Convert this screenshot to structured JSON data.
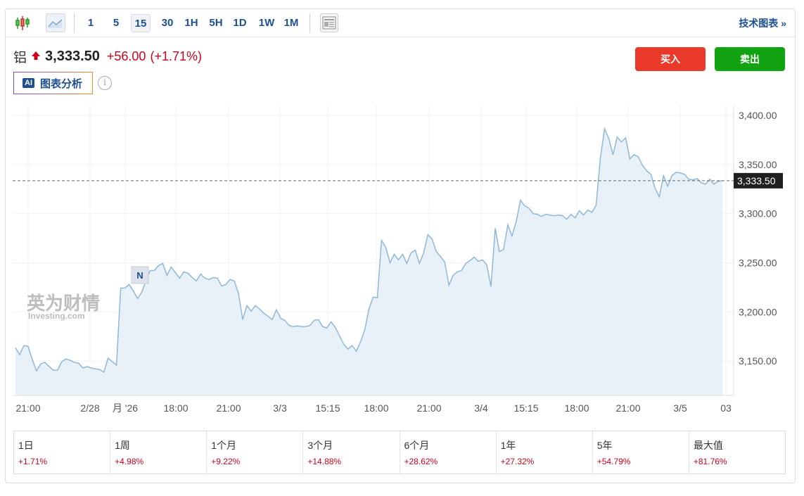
{
  "toolbar": {
    "intervals": [
      "1",
      "5",
      "15",
      "30",
      "1H",
      "5H",
      "1D",
      "1W",
      "1M"
    ],
    "active": "15",
    "tech_label": "技术图表 »"
  },
  "quote": {
    "name": "铝",
    "price": "3,333.50",
    "change": "+56.00",
    "change_pct": "(+1.71%)",
    "direction": "up"
  },
  "ai": {
    "badge": "AI",
    "label": "图表分析",
    "info": "i"
  },
  "actions": {
    "buy": "买入",
    "sell": "卖出"
  },
  "colors": {
    "up": "#d0021b",
    "buy": "#e8392b",
    "sell": "#12a312",
    "line": "#8fb8d8",
    "fill": "#e4eef7"
  },
  "watermark": {
    "cn": "英为财情",
    "en": "Investing.com"
  },
  "marker": "N",
  "chart_data": {
    "type": "area",
    "ylim": [
      3115,
      3410
    ],
    "yticks": [
      "3,150.00",
      "3,200.00",
      "3,250.00",
      "3,300.00",
      "3,350.00",
      "3,400.00"
    ],
    "ytick_values": [
      3150,
      3200,
      3250,
      3300,
      3350,
      3400
    ],
    "xticks": [
      "21:00",
      "2/28",
      "月 '26",
      "18:00",
      "21:00",
      "3/3",
      "15:15",
      "18:00",
      "21:00",
      "3/4",
      "15:15",
      "18:00",
      "21:00",
      "3/5",
      "03"
    ],
    "last_price": 3333.5,
    "last_label": "3,333.50",
    "grid": true,
    "values": [
      3163.6,
      3156.4,
      3165.7,
      3165,
      3151.4,
      3140,
      3147.1,
      3148.6,
      3144.3,
      3140.7,
      3140.7,
      3149.3,
      3152.1,
      3150.7,
      3148.6,
      3147.9,
      3142.9,
      3144.3,
      3142.9,
      3142.1,
      3141.4,
      3138.6,
      3152.9,
      3149.3,
      3145.7,
      3224.3,
      3224.3,
      3227.9,
      3221.4,
      3213.6,
      3220,
      3231.4,
      3242.1,
      3242.1,
      3247.1,
      3249.3,
      3237.1,
      3245.7,
      3240,
      3234.3,
      3240.7,
      3239.3,
      3235,
      3231.4,
      3238.6,
      3234.3,
      3232.9,
      3235,
      3234.3,
      3226.4,
      3227.9,
      3232.9,
      3231.4,
      3218.6,
      3192.1,
      3206.4,
      3200.7,
      3206.4,
      3202.9,
      3198.6,
      3195.7,
      3192.1,
      3202.1,
      3193.6,
      3191.4,
      3186.4,
      3185,
      3185.7,
      3185,
      3185,
      3186.4,
      3191.4,
      3192.1,
      3185,
      3183.6,
      3190,
      3184.3,
      3175.7,
      3167.1,
      3162.1,
      3165.7,
      3160,
      3169.3,
      3181.4,
      3202.9,
      3215,
      3214.3,
      3272.9,
      3265.7,
      3250,
      3258.6,
      3252.9,
      3258.6,
      3249.3,
      3260,
      3262.9,
      3249.3,
      3260,
      3278.6,
      3274.3,
      3261.4,
      3256.4,
      3250.7,
      3227.1,
      3237.1,
      3240.7,
      3242.1,
      3249.3,
      3252.1,
      3255.7,
      3251.4,
      3252.9,
      3247.9,
      3225.7,
      3285,
      3261.4,
      3263.6,
      3288.6,
      3277.1,
      3292.1,
      3313.6,
      3307.9,
      3305.7,
      3300,
      3299.3,
      3297.1,
      3299.3,
      3298.6,
      3297.9,
      3298.6,
      3297.9,
      3294.3,
      3299.3,
      3295.7,
      3302.9,
      3298.6,
      3303.6,
      3301.4,
      3308.6,
      3356.4,
      3386.4,
      3376.4,
      3360,
      3377.9,
      3372.9,
      3377.1,
      3355.7,
      3360,
      3357.9,
      3349.3,
      3343.6,
      3340,
      3325.7,
      3317.1,
      3338.6,
      3327.9,
      3338.6,
      3342.1,
      3341.4,
      3340,
      3335,
      3334.3,
      3335.7,
      3331.4,
      3330,
      3335,
      3330,
      3332.9,
      3333.5
    ]
  },
  "performance": [
    {
      "label": "1日",
      "value": "+1.71%"
    },
    {
      "label": "1周",
      "value": "+4.98%"
    },
    {
      "label": "1个月",
      "value": "+9.22%"
    },
    {
      "label": "3个月",
      "value": "+14.88%"
    },
    {
      "label": "6个月",
      "value": "+28.62%"
    },
    {
      "label": "1年",
      "value": "+27.32%"
    },
    {
      "label": "5年",
      "value": "+54.79%"
    },
    {
      "label": "最大值",
      "value": "+81.76%"
    }
  ]
}
